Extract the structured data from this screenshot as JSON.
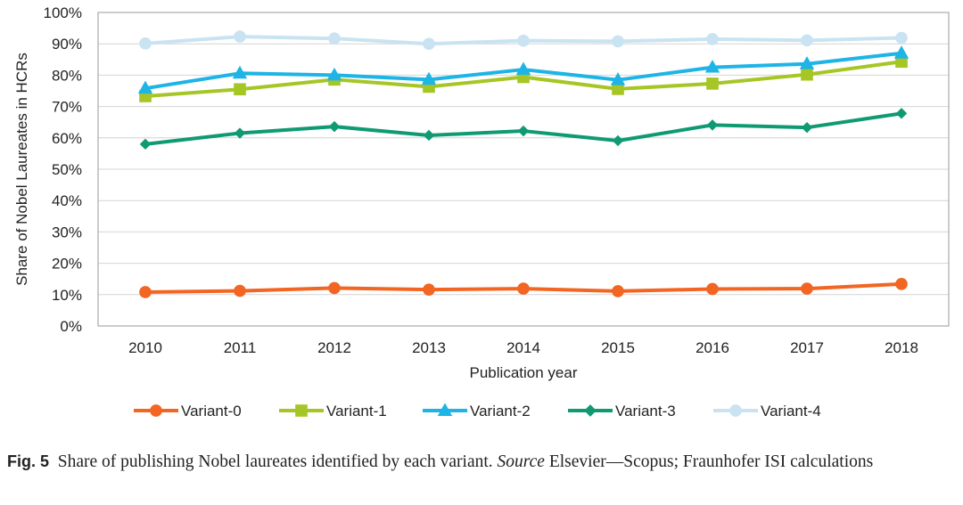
{
  "chart_data": {
    "type": "line",
    "title": "",
    "xlabel": "Publication year",
    "ylabel": "Share of Nobel Laureates in HCRs",
    "categories": [
      "2010",
      "2011",
      "2012",
      "2013",
      "2014",
      "2015",
      "2016",
      "2017",
      "2018"
    ],
    "ylim": [
      0,
      100
    ],
    "yticks": [
      "0%",
      "10%",
      "20%",
      "30%",
      "40%",
      "50%",
      "60%",
      "70%",
      "80%",
      "90%",
      "100%"
    ],
    "grid": true,
    "legend_position": "bottom",
    "series": [
      {
        "name": "Variant-0",
        "color": "#f26522",
        "marker": "circle",
        "values": [
          10.8,
          11.2,
          12.1,
          11.6,
          11.9,
          11.1,
          11.8,
          11.9,
          13.4
        ]
      },
      {
        "name": "Variant-1",
        "color": "#a6c626",
        "marker": "square",
        "values": [
          73.3,
          75.5,
          78.6,
          76.3,
          79.4,
          75.6,
          77.3,
          80.2,
          84.3
        ]
      },
      {
        "name": "Variant-2",
        "color": "#1eb4e6",
        "marker": "triangle",
        "values": [
          75.8,
          80.6,
          80.0,
          78.6,
          81.8,
          78.5,
          82.5,
          83.6,
          87.0
        ]
      },
      {
        "name": "Variant-3",
        "color": "#0f9a74",
        "marker": "diamond",
        "values": [
          58.0,
          61.5,
          63.6,
          60.8,
          62.2,
          59.1,
          64.1,
          63.3,
          67.8
        ]
      },
      {
        "name": "Variant-4",
        "color": "#c9e3f2",
        "marker": "circle",
        "values": [
          90.1,
          92.3,
          91.7,
          90.0,
          91.0,
          90.8,
          91.5,
          91.1,
          91.9
        ]
      }
    ]
  },
  "caption": {
    "label": "Fig. 5",
    "text_before": "Share of publishing Nobel laureates identified by each variant. ",
    "source_word": "Source",
    "text_after": " Elsevier—Scopus; Fraunhofer ISI calculations"
  }
}
